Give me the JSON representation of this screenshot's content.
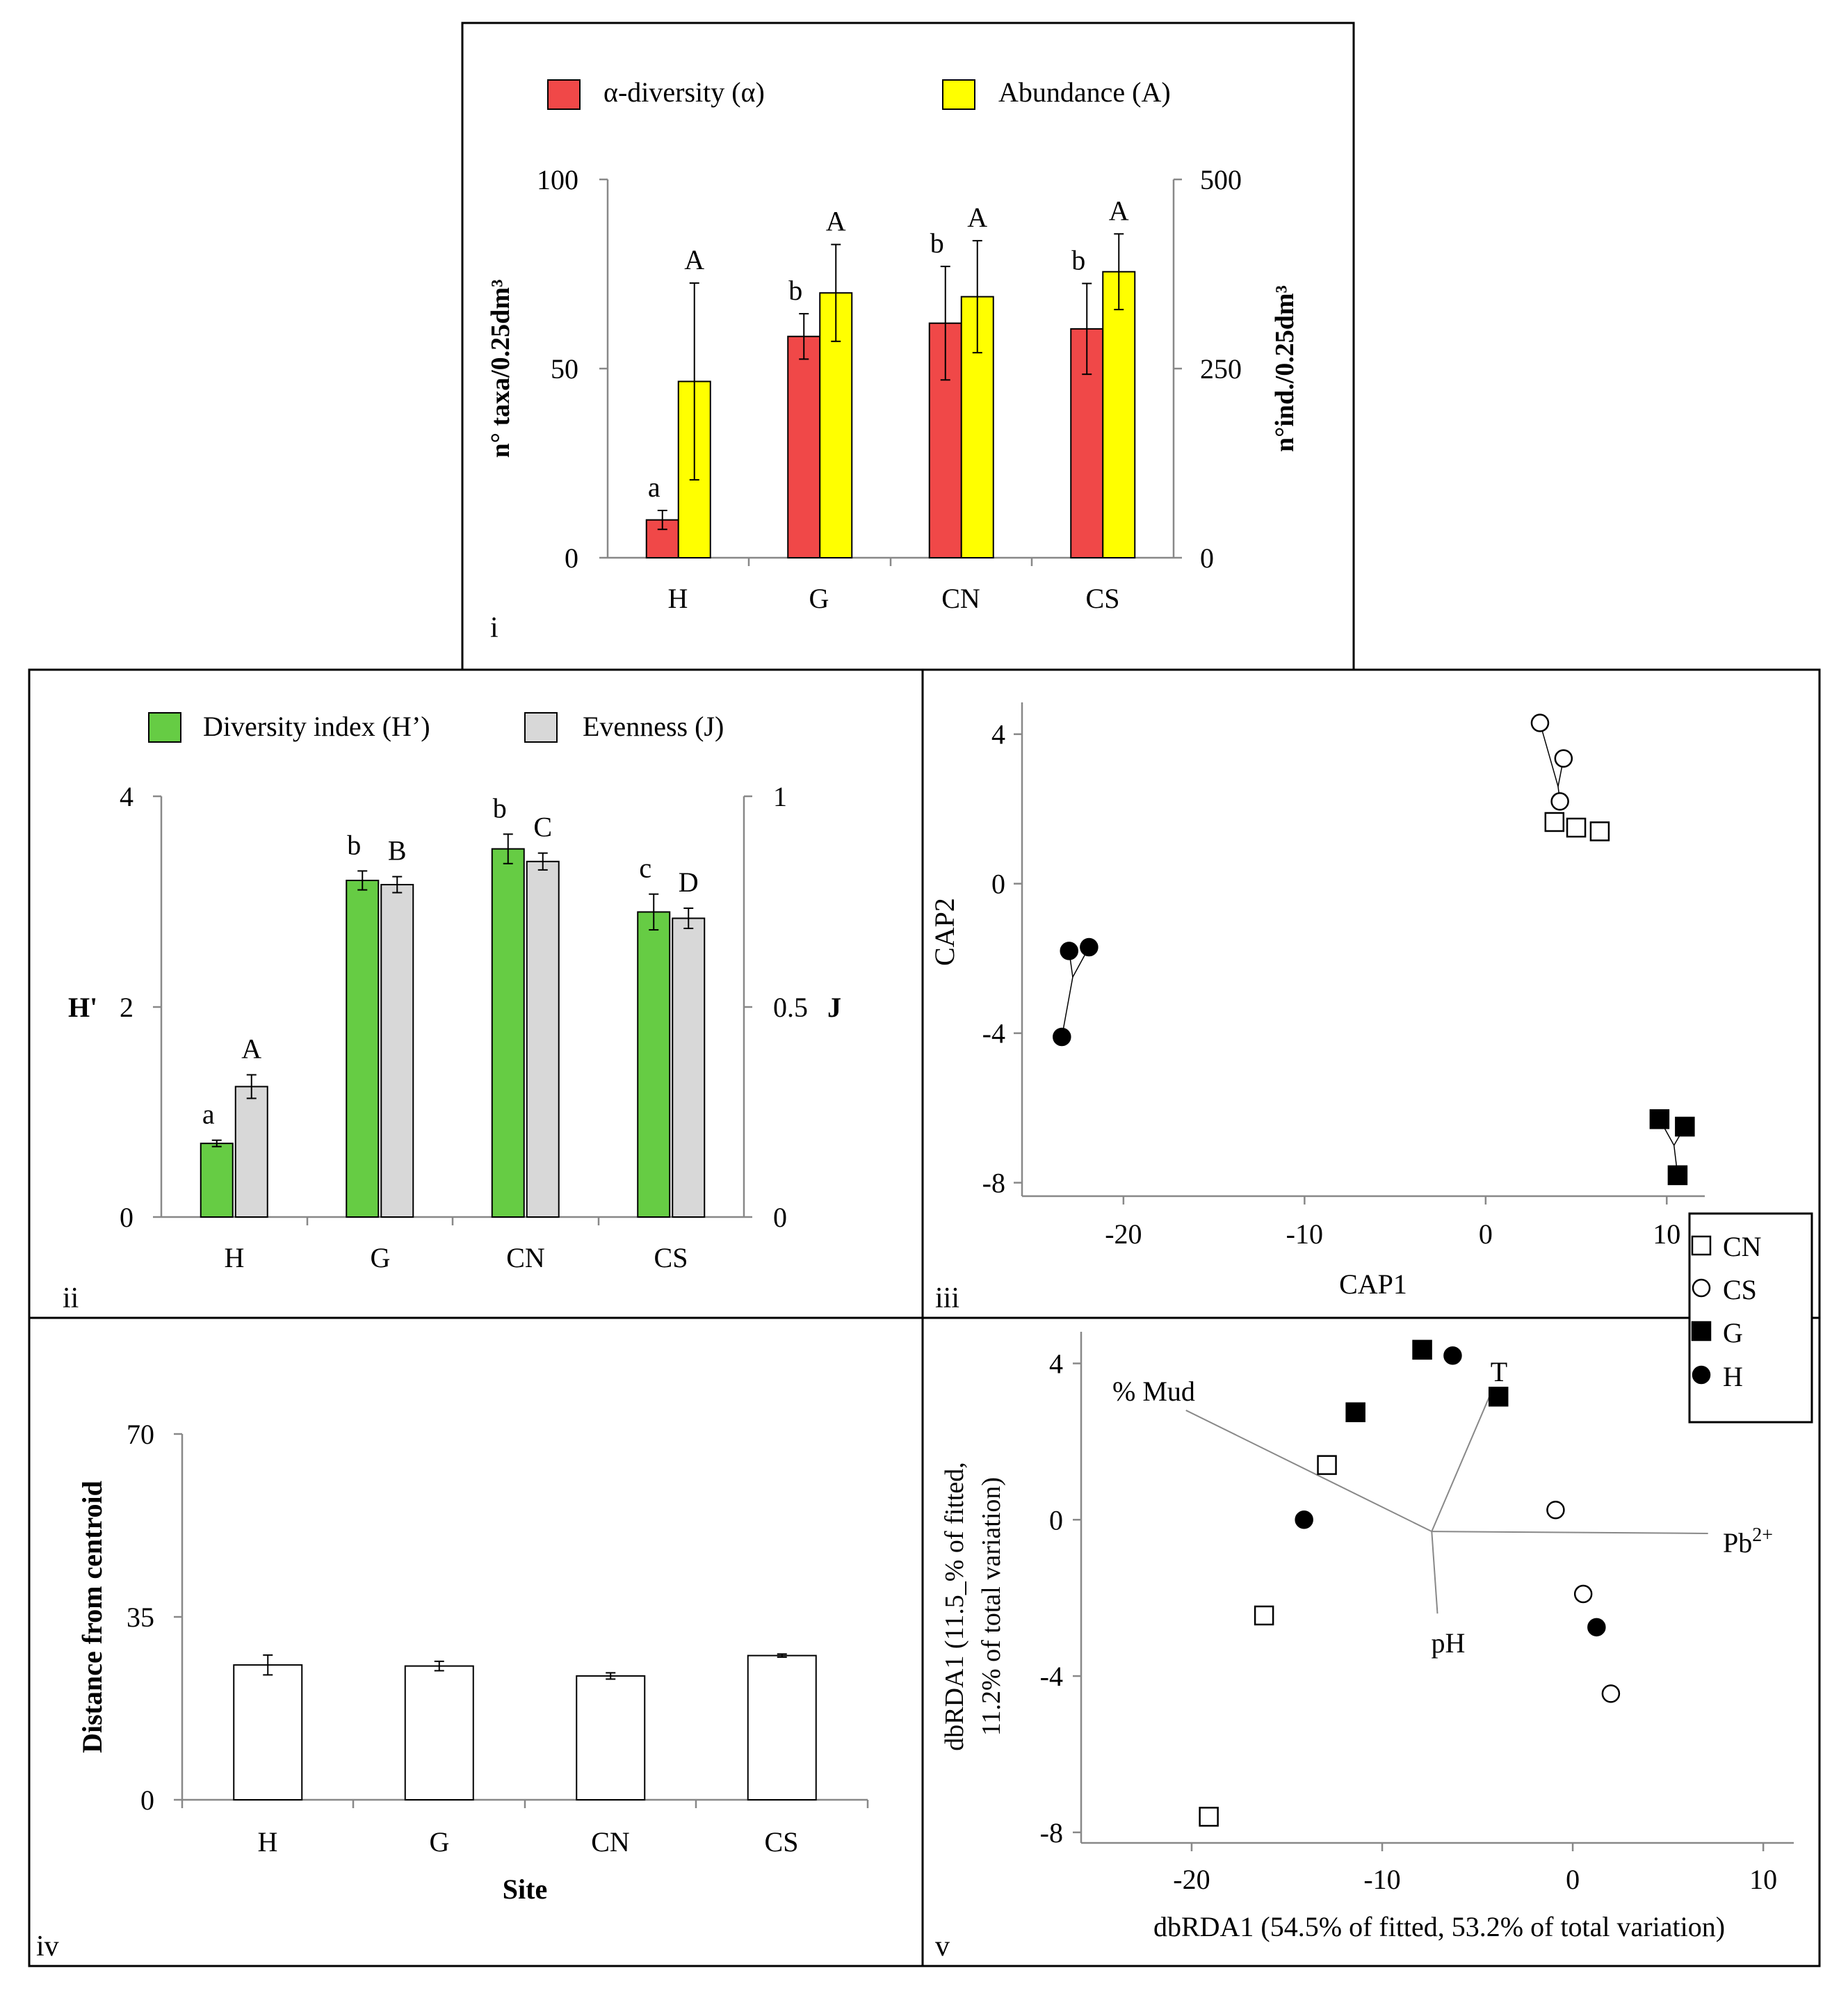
{
  "colors": {
    "alpha": "#f04848",
    "abundance": "#ffff00",
    "diversity": "#66cc44",
    "evenness": "#d8d8d8",
    "white_bar": "#ffffff",
    "frame": "#000000",
    "vector": "#888888"
  },
  "chart_data": [
    {
      "id": "i",
      "type": "bar",
      "panel_label": "i",
      "categories": [
        "H",
        "G",
        "CN",
        "CS"
      ],
      "series": [
        {
          "name": "α-diversity (α)",
          "axis": "left",
          "values": [
            10,
            58.5,
            62,
            60.5
          ],
          "error": [
            2.5,
            6,
            15,
            12
          ]
        },
        {
          "name": "Abundance (A)",
          "axis": "right",
          "values": [
            233,
            350,
            345,
            378
          ],
          "error": [
            130,
            64,
            74,
            50
          ]
        }
      ],
      "ylabel_left": "n° taxa/0.25dm³",
      "ylabel_right": "n°ind./0.25dm³",
      "yticks_left": [
        "0",
        "50",
        "100"
      ],
      "yticks_right": [
        "0",
        "250",
        "500"
      ],
      "ylim_left": [
        0,
        100
      ],
      "ylim_right": [
        0,
        500
      ],
      "letters_alpha": [
        "a",
        "b",
        "b",
        "b"
      ],
      "letters_abundance": [
        "A",
        "A",
        "A",
        "A"
      ]
    },
    {
      "id": "ii",
      "type": "bar",
      "panel_label": "ii",
      "categories": [
        "H",
        "G",
        "CN",
        "CS"
      ],
      "series": [
        {
          "name": "Diversity index (H’)",
          "axis": "left",
          "values": [
            0.7,
            3.2,
            3.5,
            2.9
          ],
          "error": [
            0.03,
            0.09,
            0.14,
            0.17
          ]
        },
        {
          "name": "Evenness (J)",
          "axis": "right",
          "values": [
            0.31,
            0.79,
            0.845,
            0.71
          ],
          "error": [
            0.028,
            0.019,
            0.02,
            0.024
          ]
        }
      ],
      "ylabel_left": "H'",
      "ylabel_right": "J",
      "yticks_left": [
        "0",
        "2",
        "4"
      ],
      "yticks_right": [
        "0",
        "0.5",
        "1"
      ],
      "ylim_left": [
        0,
        4
      ],
      "ylim_right": [
        0,
        1
      ],
      "letters_h": [
        "a",
        "b",
        "b",
        "c"
      ],
      "letters_j": [
        "A",
        "B",
        "C",
        "D"
      ]
    },
    {
      "id": "iii",
      "type": "scatter",
      "panel_label": "iii",
      "xlabel": "CAP1",
      "ylabel": "CAP2",
      "xticks": [
        "-20",
        "-10",
        "0",
        "10"
      ],
      "yticks": [
        "-8",
        "-4",
        "0",
        "4"
      ],
      "xlim": [
        -25.6,
        12.1
      ],
      "ylim": [
        -8.36,
        4.85
      ],
      "points": [
        {
          "group": "CN",
          "x": 3.8,
          "y": 1.65
        },
        {
          "group": "CN",
          "x": 5.0,
          "y": 1.5
        },
        {
          "group": "CN",
          "x": 6.3,
          "y": 1.4
        },
        {
          "group": "CS",
          "x": 3.0,
          "y": 4.3
        },
        {
          "group": "CS",
          "x": 4.3,
          "y": 3.35
        },
        {
          "group": "CS",
          "x": 4.1,
          "y": 2.2
        },
        {
          "group": "G",
          "x": 9.6,
          "y": -6.3
        },
        {
          "group": "G",
          "x": 11.0,
          "y": -6.5
        },
        {
          "group": "G",
          "x": 10.6,
          "y": -7.8
        },
        {
          "group": "H",
          "x": -23.0,
          "y": -1.8
        },
        {
          "group": "H",
          "x": -21.9,
          "y": -1.7
        },
        {
          "group": "H",
          "x": -23.4,
          "y": -4.1
        }
      ],
      "spiders": [
        {
          "center": [
            4.0,
            2.6
          ],
          "members": [
            [
              3.0,
              4.3
            ],
            [
              4.3,
              3.35
            ],
            [
              4.1,
              2.2
            ]
          ]
        },
        {
          "center": [
            10.4,
            -7.0
          ],
          "members": [
            [
              9.6,
              -6.3
            ],
            [
              11.0,
              -6.5
            ],
            [
              10.6,
              -7.8
            ]
          ]
        },
        {
          "center": [
            -22.8,
            -2.5
          ],
          "members": [
            [
              -23.0,
              -1.8
            ],
            [
              -21.9,
              -1.7
            ],
            [
              -23.4,
              -4.1
            ]
          ]
        }
      ],
      "legend": [
        "CN",
        "CS",
        "G",
        "H"
      ]
    },
    {
      "id": "iv",
      "type": "bar",
      "panel_label": "iv",
      "categories": [
        "H",
        "G",
        "CN",
        "CS"
      ],
      "series": [
        {
          "name": "Distance from centroid",
          "values": [
            25.8,
            25.6,
            23.7,
            27.6
          ],
          "error": [
            1.9,
            0.9,
            0.6,
            0.3
          ]
        }
      ],
      "xlabel": "Site",
      "ylabel": "Distance from centroid",
      "yticks": [
        "0",
        "35",
        "70"
      ],
      "ylim": [
        0,
        70
      ]
    },
    {
      "id": "v",
      "type": "scatter",
      "panel_label": "v",
      "xlabel": "dbRDA1 (54.5% of fitted, 53.2% of total variation)",
      "ylabel_line1": "dbRDA1 (11.5_% of fitted,",
      "ylabel_line2": "11.2% of total variation)",
      "xticks": [
        "-20",
        "-10",
        "0",
        "10"
      ],
      "yticks": [
        "-8",
        "-4",
        "0",
        "4"
      ],
      "xlim": [
        -25.8,
        11.6
      ],
      "ylim": [
        -8.27,
        4.81
      ],
      "points": [
        {
          "group": "CN",
          "x": -12.9,
          "y": 1.4
        },
        {
          "group": "CN",
          "x": -16.2,
          "y": -2.45
        },
        {
          "group": "CN",
          "x": -19.1,
          "y": -7.6
        },
        {
          "group": "CS",
          "x": -0.9,
          "y": 0.25
        },
        {
          "group": "CS",
          "x": 0.55,
          "y": -1.9
        },
        {
          "group": "CS",
          "x": 2.0,
          "y": -4.45
        },
        {
          "group": "G",
          "x": -7.9,
          "y": 4.35
        },
        {
          "group": "G",
          "x": -11.4,
          "y": 2.75
        },
        {
          "group": "G",
          "x": -3.9,
          "y": 3.15
        },
        {
          "group": "H",
          "x": -6.3,
          "y": 4.2
        },
        {
          "group": "H",
          "x": -14.1,
          "y": 0.0
        },
        {
          "group": "H",
          "x": 1.25,
          "y": -2.75
        }
      ],
      "origin": [
        -7.4,
        -0.3
      ],
      "vectors": [
        {
          "label": "% Mud",
          "end": [
            -20.3,
            2.8
          ]
        },
        {
          "label": "T",
          "end": [
            -4.2,
            3.35
          ]
        },
        {
          "label": "Pb2+",
          "end": [
            7.1,
            -0.35
          ]
        },
        {
          "label": "pH",
          "end": [
            -7.1,
            -2.4
          ]
        }
      ]
    }
  ]
}
